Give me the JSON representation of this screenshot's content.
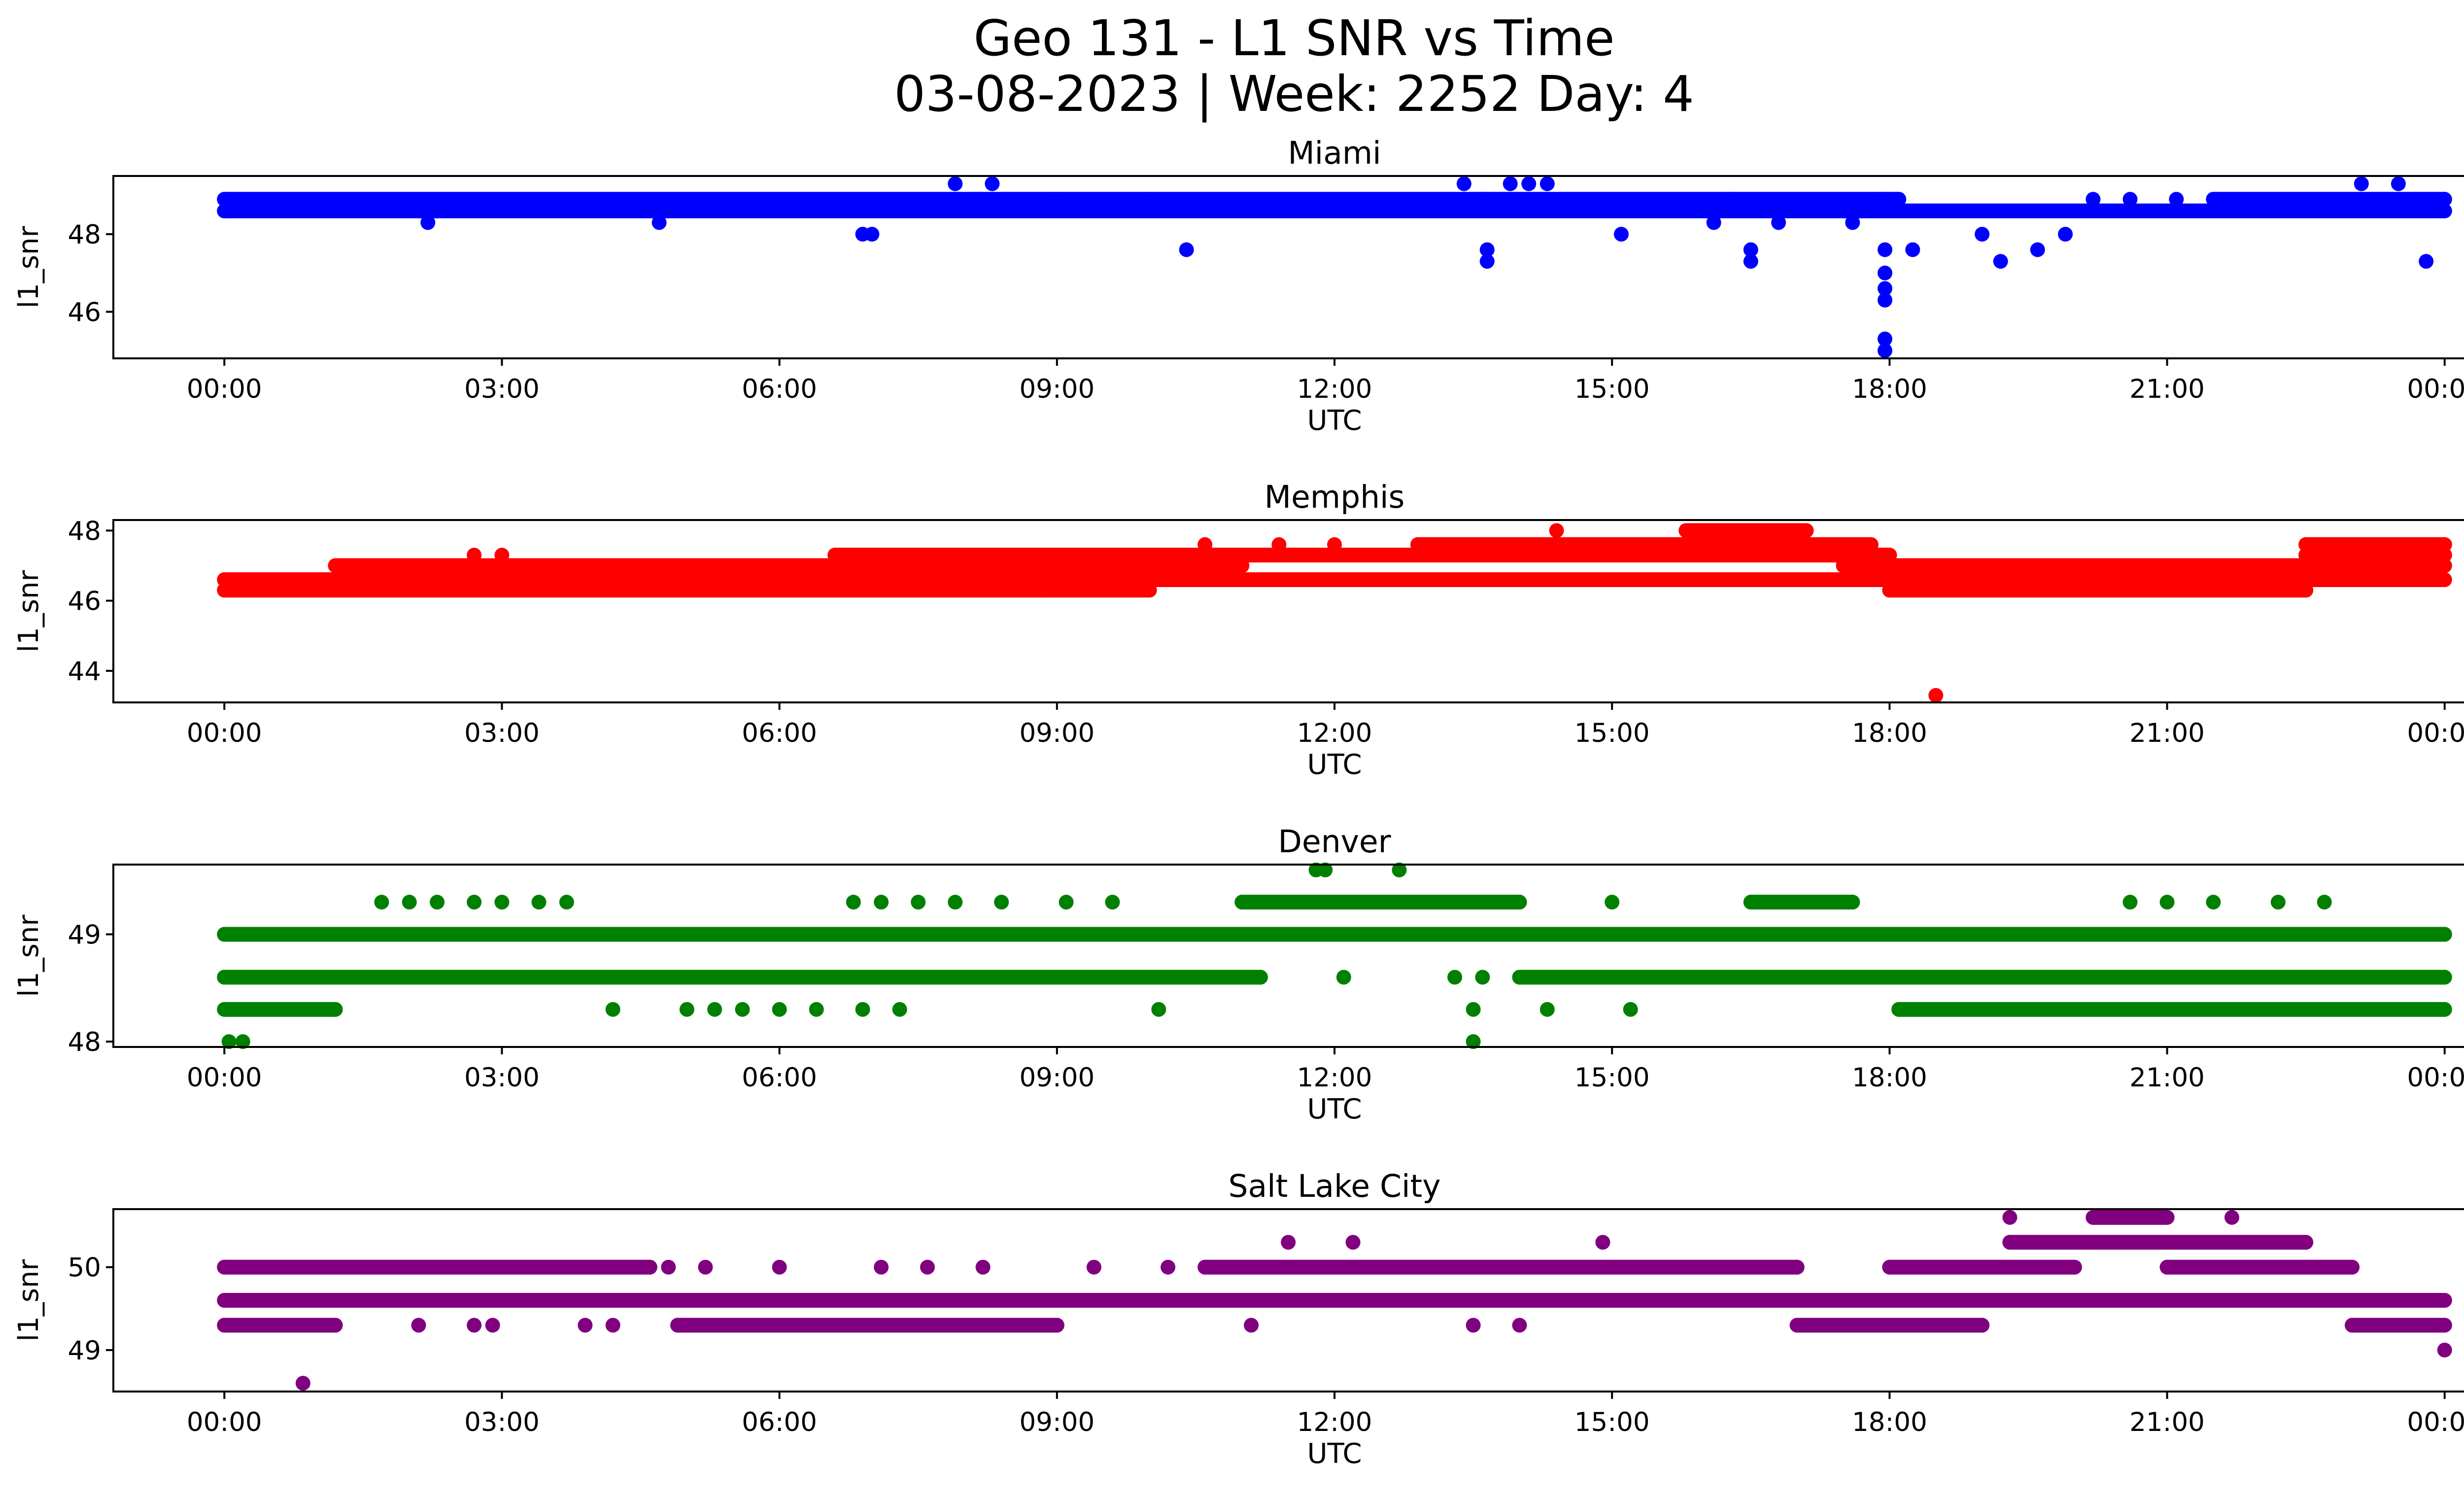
{
  "chart_data": {
    "type": "scatter",
    "title": "Geo 131 - L1 SNR vs Time",
    "subtitle": "03-08-2023 | Week: 2252 Day: 4",
    "x_ticks": [
      "00:00",
      "03:00",
      "06:00",
      "09:00",
      "12:00",
      "15:00",
      "18:00",
      "21:00",
      "00:00"
    ],
    "xlim_hours": [
      -1.2,
      25.2
    ],
    "panels": [
      {
        "title": "Miami",
        "xlabel": "UTC",
        "ylabel": "l1_snr",
        "color": "#0000ff",
        "ylim": [
          44.8,
          49.5
        ],
        "yticks": [
          46,
          48
        ],
        "levels": [
          48.6,
          48.9
        ],
        "bands": [
          [
            0,
            24,
            48.6
          ],
          [
            0,
            13.6,
            48.9
          ],
          [
            13.6,
            16.3,
            48.9
          ],
          [
            16.3,
            17.9,
            48.9
          ],
          [
            17.9,
            18.1,
            48.9
          ],
          [
            21.5,
            24,
            48.9
          ]
        ],
        "outliers": [
          [
            7.9,
            49.3
          ],
          [
            8.3,
            49.3
          ],
          [
            10.4,
            47.6
          ],
          [
            13.4,
            49.3
          ],
          [
            13.9,
            49.3
          ],
          [
            14.1,
            49.3
          ],
          [
            14.3,
            49.3
          ],
          [
            13.65,
            47.6
          ],
          [
            13.65,
            47.3
          ],
          [
            16.5,
            47.6
          ],
          [
            16.5,
            47.3
          ],
          [
            17.95,
            47.6
          ],
          [
            17.95,
            46.6
          ],
          [
            17.95,
            46.3
          ],
          [
            17.95,
            47.0
          ],
          [
            17.95,
            45.3
          ],
          [
            17.95,
            45.0
          ],
          [
            18.25,
            47.6
          ],
          [
            19.2,
            47.3
          ],
          [
            19.6,
            47.6
          ],
          [
            23.1,
            49.3
          ],
          [
            23.5,
            49.3
          ],
          [
            23.8,
            47.3
          ],
          [
            6.9,
            48.0
          ],
          [
            7.0,
            48.0
          ],
          [
            2.2,
            48.3
          ],
          [
            4.7,
            48.3
          ],
          [
            9.0,
            48.9
          ],
          [
            10.0,
            48.9
          ],
          [
            15.1,
            48.0
          ],
          [
            16.1,
            48.3
          ],
          [
            16.8,
            48.3
          ],
          [
            17.6,
            48.3
          ],
          [
            19.0,
            48.0
          ],
          [
            19.9,
            48.0
          ],
          [
            20.2,
            48.9
          ],
          [
            20.6,
            48.9
          ],
          [
            21.1,
            48.9
          ]
        ]
      },
      {
        "title": "Memphis",
        "xlabel": "UTC",
        "ylabel": "l1_snr",
        "color": "#ff0000",
        "ylim": [
          43.1,
          48.3
        ],
        "yticks": [
          44,
          46,
          48
        ],
        "levels": [
          46.3,
          46.6,
          47.0,
          47.3,
          47.6,
          48.0
        ],
        "bands": [
          [
            0,
            24,
            46.6
          ],
          [
            0,
            8.9,
            46.3
          ],
          [
            8.9,
            10.0,
            46.3
          ],
          [
            18.0,
            22.5,
            46.3
          ],
          [
            1.2,
            11.0,
            47.0
          ],
          [
            17.5,
            24,
            47.0
          ],
          [
            6.6,
            18.0,
            47.3
          ],
          [
            22.5,
            24,
            47.3
          ],
          [
            12.9,
            17.8,
            47.6
          ],
          [
            22.5,
            24,
            47.6
          ],
          [
            15.8,
            17.1,
            48.0
          ]
        ],
        "outliers": [
          [
            18.5,
            43.3
          ],
          [
            2.7,
            47.3
          ],
          [
            3.0,
            47.3
          ],
          [
            10.6,
            47.6
          ],
          [
            11.4,
            47.6
          ],
          [
            12.0,
            47.6
          ],
          [
            14.4,
            48.0
          ],
          [
            11.9,
            46.6
          ],
          [
            12.0,
            46.6
          ],
          [
            19.3,
            46.3
          ],
          [
            20.3,
            46.3
          ]
        ]
      },
      {
        "title": "Denver",
        "xlabel": "UTC",
        "ylabel": "l1_snr",
        "color": "#008000",
        "ylim": [
          47.95,
          49.65
        ],
        "yticks": [
          48,
          49
        ],
        "levels": [
          48.0,
          48.3,
          48.6,
          49.0,
          49.3,
          49.6
        ],
        "bands": [
          [
            0,
            24,
            49.0
          ],
          [
            0,
            11.2,
            48.6
          ],
          [
            14.0,
            24,
            48.6
          ],
          [
            0,
            1.2,
            48.3
          ],
          [
            18.1,
            24,
            48.3
          ],
          [
            11.0,
            14.0,
            49.3
          ],
          [
            16.5,
            17.6,
            49.3
          ]
        ],
        "outliers": [
          [
            0.05,
            48.0
          ],
          [
            0.2,
            48.0
          ],
          [
            13.5,
            48.0
          ],
          [
            11.8,
            49.6
          ],
          [
            11.9,
            49.6
          ],
          [
            12.7,
            49.6
          ],
          [
            1.7,
            49.3
          ],
          [
            2.0,
            49.3
          ],
          [
            2.3,
            49.3
          ],
          [
            2.7,
            49.3
          ],
          [
            3.0,
            49.3
          ],
          [
            3.4,
            49.3
          ],
          [
            3.7,
            49.3
          ],
          [
            6.8,
            49.3
          ],
          [
            7.1,
            49.3
          ],
          [
            7.5,
            49.3
          ],
          [
            7.9,
            49.3
          ],
          [
            8.4,
            49.3
          ],
          [
            9.1,
            49.3
          ],
          [
            9.6,
            49.3
          ],
          [
            20.6,
            49.3
          ],
          [
            21.0,
            49.3
          ],
          [
            21.5,
            49.3
          ],
          [
            22.2,
            49.3
          ],
          [
            22.7,
            49.3
          ],
          [
            4.2,
            48.3
          ],
          [
            5.0,
            48.3
          ],
          [
            5.3,
            48.3
          ],
          [
            5.6,
            48.3
          ],
          [
            6.0,
            48.3
          ],
          [
            6.4,
            48.3
          ],
          [
            6.9,
            48.3
          ],
          [
            7.3,
            48.3
          ],
          [
            10.1,
            48.3
          ],
          [
            13.5,
            48.3
          ],
          [
            14.3,
            48.3
          ],
          [
            15.2,
            48.3
          ],
          [
            12.1,
            48.6
          ],
          [
            13.3,
            48.6
          ],
          [
            13.6,
            48.6
          ],
          [
            15.0,
            49.3
          ],
          [
            23.7,
            49.0
          ]
        ]
      },
      {
        "title": "Salt Lake City",
        "xlabel": "UTC",
        "ylabel": "l1_snr",
        "color": "#800080",
        "ylim": [
          48.5,
          50.7
        ],
        "yticks": [
          49,
          50
        ],
        "levels": [
          49.3,
          49.6,
          50.0,
          50.3,
          50.6
        ],
        "bands": [
          [
            0,
            24,
            49.6
          ],
          [
            0,
            1.2,
            49.3
          ],
          [
            4.9,
            9.0,
            49.3
          ],
          [
            17.0,
            19.0,
            49.3
          ],
          [
            23.0,
            24,
            49.3
          ],
          [
            0,
            4.6,
            50.0
          ],
          [
            10.6,
            17.0,
            50.0
          ],
          [
            18.0,
            20.0,
            50.0
          ],
          [
            21.0,
            23.0,
            50.0
          ],
          [
            19.3,
            22.5,
            50.3
          ],
          [
            20.2,
            21.0,
            50.6
          ]
        ],
        "outliers": [
          [
            0.85,
            48.6
          ],
          [
            24.0,
            49.0
          ],
          [
            11.5,
            50.3
          ],
          [
            12.2,
            50.3
          ],
          [
            14.9,
            50.3
          ],
          [
            19.3,
            50.6
          ],
          [
            21.7,
            50.6
          ],
          [
            4.8,
            50.0
          ],
          [
            5.2,
            50.0
          ],
          [
            6.0,
            50.0
          ],
          [
            7.1,
            50.0
          ],
          [
            7.6,
            50.0
          ],
          [
            8.2,
            50.0
          ],
          [
            9.4,
            50.0
          ],
          [
            10.2,
            50.0
          ],
          [
            2.1,
            49.3
          ],
          [
            2.7,
            49.3
          ],
          [
            2.9,
            49.3
          ],
          [
            3.9,
            49.3
          ],
          [
            4.2,
            49.3
          ],
          [
            11.1,
            49.3
          ],
          [
            13.5,
            49.3
          ],
          [
            14.0,
            49.3
          ],
          [
            22.0,
            49.6
          ]
        ]
      }
    ]
  }
}
